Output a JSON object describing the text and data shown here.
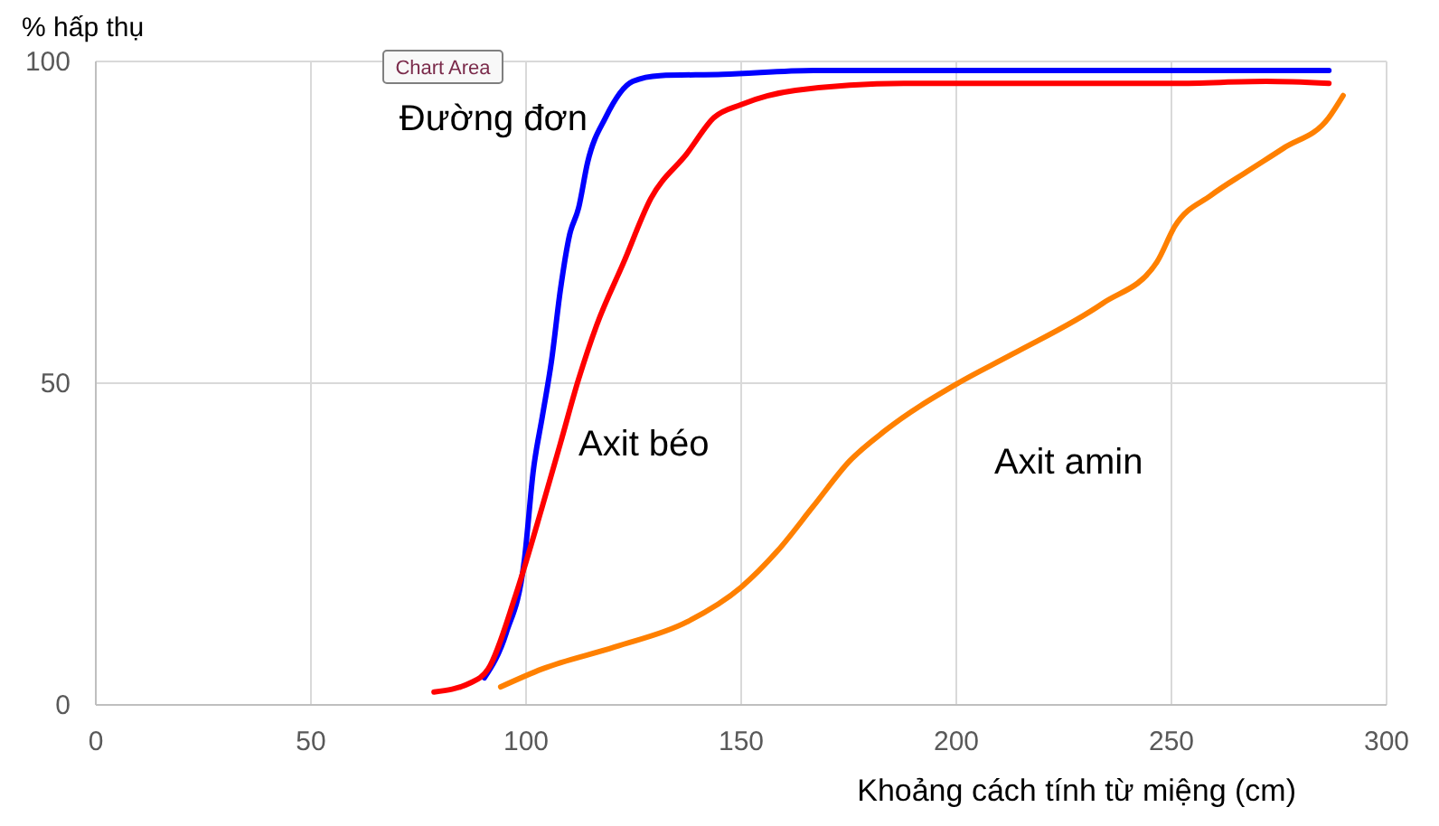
{
  "chart_data": {
    "type": "line",
    "xlabel": "Khoảng cách tính từ miệng (cm)",
    "ylabel": "% hấp thụ",
    "annotations": [
      "Chart Area"
    ],
    "xlim": [
      0,
      300
    ],
    "xticks": [
      0,
      50,
      100,
      150,
      200,
      250,
      300
    ],
    "ylim": [
      0,
      100
    ],
    "yticks": [
      0,
      50,
      100
    ],
    "grid": true,
    "marker": "none",
    "line_style": "solid",
    "series": [
      {
        "name": "Đường đơn",
        "color": "#0000ff",
        "x": [
          90.3,
          95.4,
          99.6,
          101.7,
          103.8,
          105.9,
          108.0,
          110.1,
          112.2,
          114.3,
          118.5,
          124.8,
          131.1,
          145.8,
          166.8,
          286.6
        ],
        "values": [
          4.2,
          11.2,
          22.5,
          36.5,
          44.9,
          53.4,
          64.6,
          73,
          77.2,
          84.3,
          91.3,
          96.9,
          97.8,
          98,
          98.6,
          98.6
        ]
      },
      {
        "name": "Axit béo",
        "color": "#ff0000",
        "x": [
          78.6,
          87,
          91.2,
          97.5,
          103.8,
          108,
          112.2,
          116.4,
          122.7,
          129,
          137.4,
          143.7,
          150,
          162.6,
          187.8,
          250.8,
          272,
          286.6
        ],
        "values": [
          2,
          3.4,
          5.6,
          16.9,
          30.9,
          40.7,
          50.6,
          59,
          68.8,
          78.7,
          85.7,
          91.3,
          93.3,
          95.5,
          96.6,
          96.6,
          96.9,
          96.6
        ]
      },
      {
        "name": "Axit amin",
        "color": "#ff8000",
        "x": [
          94.1,
          103.8,
          120.6,
          137.4,
          150,
          158.4,
          166.8,
          175.2,
          183.6,
          200.4,
          213,
          234,
          246.6,
          250.8,
          259.2,
          267.6,
          276,
          286.6,
          289.9
        ],
        "values": [
          2.8,
          5.6,
          9,
          12.9,
          18.3,
          23.9,
          30.9,
          37.9,
          42.7,
          50,
          54.5,
          62.4,
          68.8,
          74.4,
          79.2,
          82.9,
          86.5,
          91.3,
          94.7
        ]
      }
    ]
  }
}
